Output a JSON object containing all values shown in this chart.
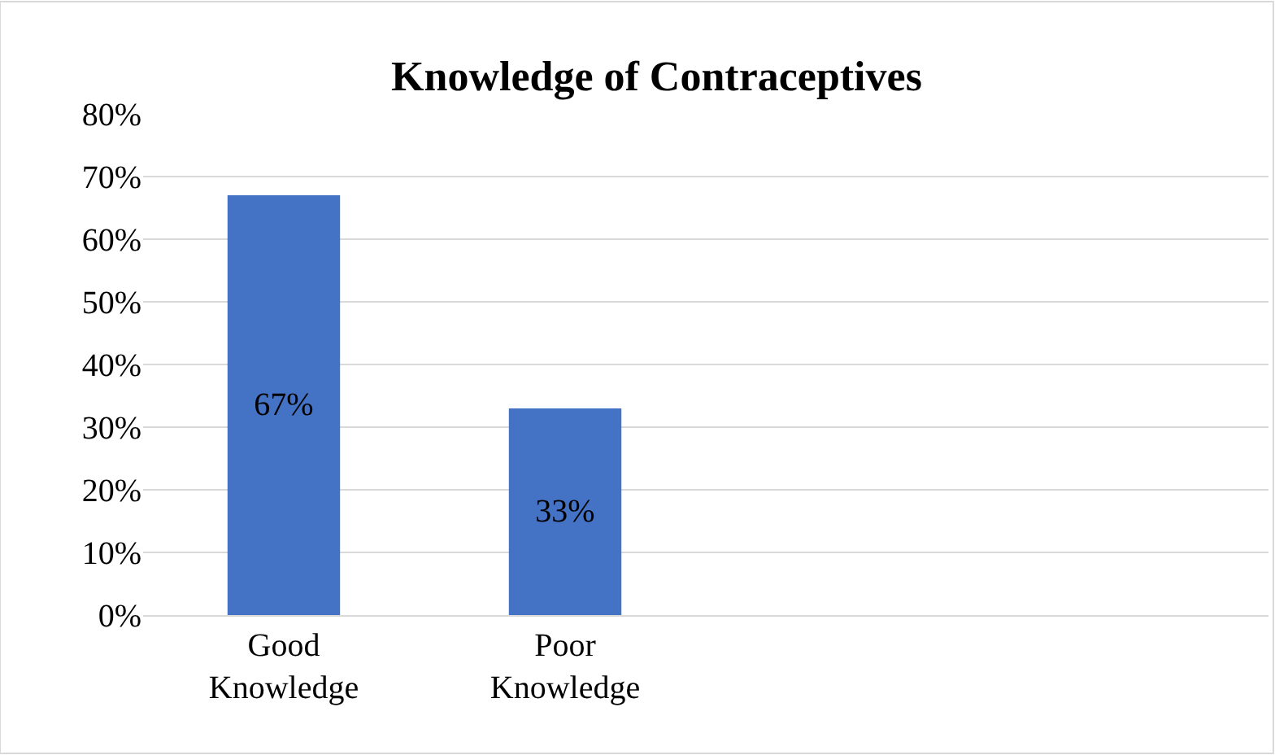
{
  "chart_data": {
    "type": "bar",
    "title": "Knowledge of Contraceptives",
    "categories": [
      "Good Knowledge",
      "Poor Knowledge",
      null,
      null
    ],
    "values": [
      67,
      33,
      null,
      null
    ],
    "color": "#4472c4",
    "value_labels": [
      "67%",
      "33%",
      null,
      null
    ],
    "ylim": [
      0,
      80
    ],
    "yticks": [
      {
        "value": 0,
        "label": "0%"
      },
      {
        "value": 10,
        "label": "10%"
      },
      {
        "value": 20,
        "label": "20%"
      },
      {
        "value": 30,
        "label": "30%"
      },
      {
        "value": 40,
        "label": "40%"
      },
      {
        "value": 50,
        "label": "50%"
      },
      {
        "value": 60,
        "label": "60%"
      },
      {
        "value": 70,
        "label": "70%"
      },
      {
        "value": 80,
        "label": "80%"
      }
    ],
    "grid": "y",
    "legend": false
  }
}
